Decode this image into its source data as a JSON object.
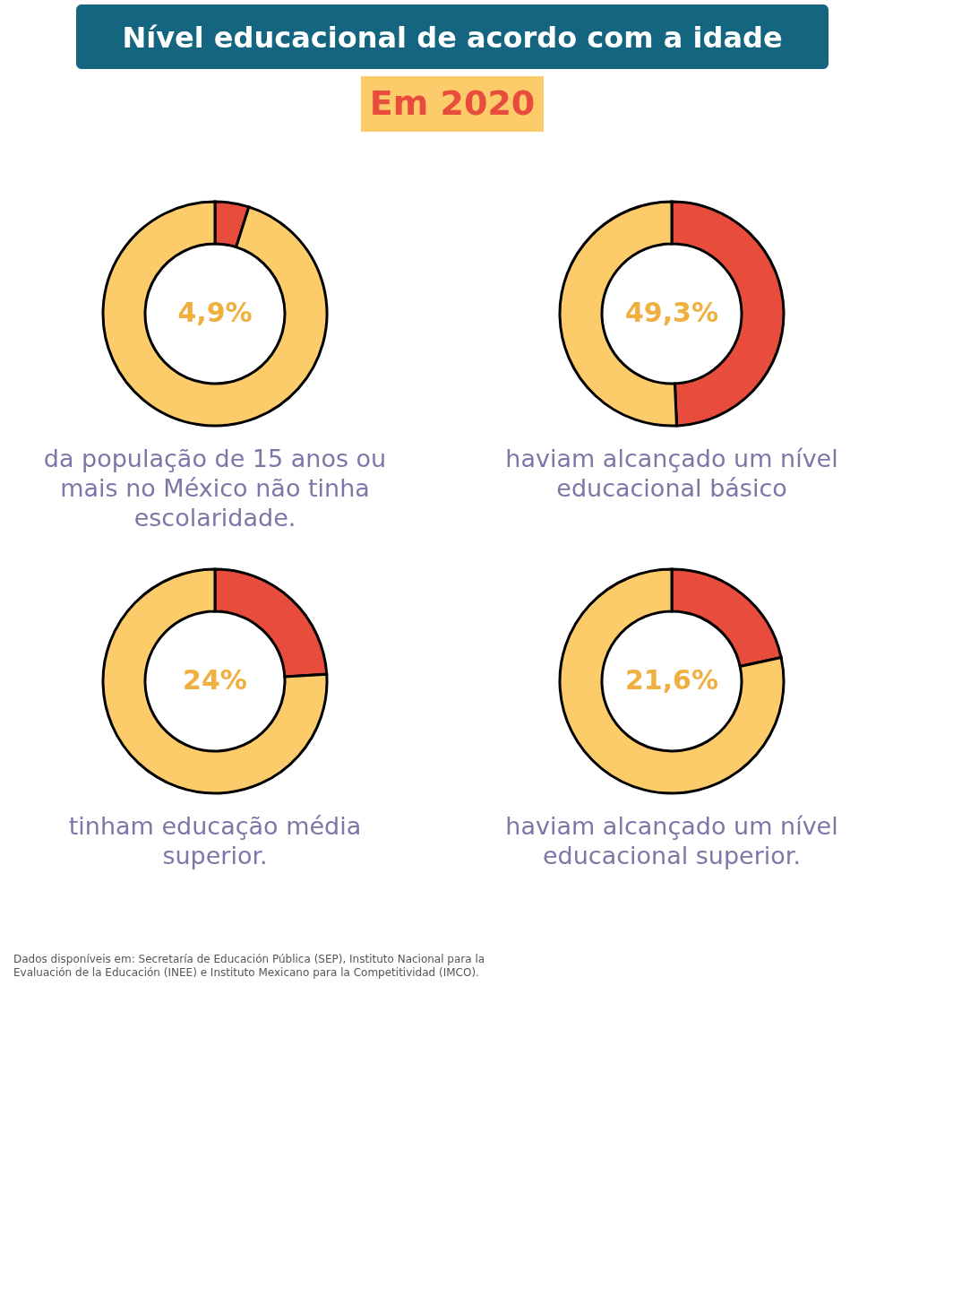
{
  "chart_data": [
    {
      "type": "donut",
      "title": "Nível educacional de acordo com a idade",
      "subtitle": "Em 2020",
      "categories": [
        null,
        null
      ],
      "values": [
        4.9,
        95.1
      ],
      "colors": [
        "#e84c3d",
        "#fccb6a"
      ],
      "value_labels": [
        "4,9%",
        null
      ],
      "annotations": [
        "da população de 15 anos ou mais no México não tinha escolaridade."
      ]
    },
    {
      "type": "donut",
      "categories": [
        null,
        null
      ],
      "values": [
        49.3,
        50.7
      ],
      "colors": [
        "#e84c3d",
        "#fccb6a"
      ],
      "value_labels": [
        "49,3%",
        null
      ],
      "annotations": [
        "haviam alcançado um nível educacional básico"
      ]
    },
    {
      "type": "donut",
      "categories": [
        null,
        null
      ],
      "values": [
        24,
        76
      ],
      "colors": [
        "#e84c3d",
        "#fccb6a"
      ],
      "value_labels": [
        "24%",
        null
      ],
      "annotations": [
        "tinham educação média superior."
      ]
    },
    {
      "type": "donut",
      "categories": [
        null,
        null
      ],
      "values": [
        21.6,
        78.4
      ],
      "colors": [
        "#e84c3d",
        "#fccb6a"
      ],
      "value_labels": [
        "21,6%",
        null
      ],
      "annotations": [
        "haviam alcançado um nível educacional superior.",
        "Dados disponíveis em: Secretaría de Educación Pública (SEP), Instituto Nacional para la Evaluación de la Educación (INEE) e Instituto Mexicano para la Competitividad (IMCO)."
      ]
    }
  ]
}
